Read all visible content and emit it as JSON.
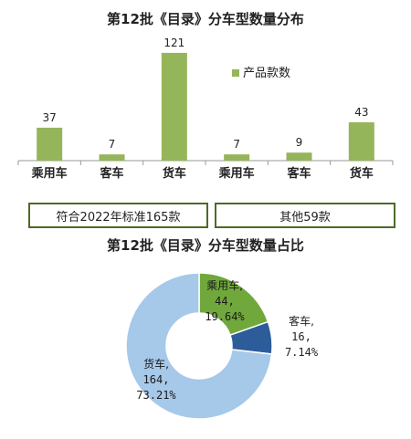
{
  "bar_chart": {
    "title": "第12批《目录》分车型数量分布",
    "legend_label": "产品款数",
    "bar_color": "#95b55a",
    "groups": [
      {
        "label": "符合2022年标准165款"
      },
      {
        "label": "其他59款"
      }
    ]
  },
  "donut_chart": {
    "title": "第12批《目录》分车型数量占比"
  },
  "chart_data": [
    {
      "type": "bar",
      "title": "第12批《目录》分车型数量分布",
      "categories": [
        "乘用车",
        "客车",
        "货车",
        "乘用车",
        "客车",
        "货车"
      ],
      "series": [
        {
          "name": "产品款数",
          "values": [
            37,
            7,
            121,
            7,
            9,
            43
          ]
        }
      ],
      "value_labels": [
        "37",
        "7",
        "121",
        "7",
        "9",
        "43"
      ],
      "groups": [
        "符合2022年标准165款",
        "其他59款"
      ],
      "legend": "right",
      "grid": false,
      "ylim": [
        0,
        125
      ],
      "color": "#95b55a"
    },
    {
      "type": "pie",
      "subtype": "donut",
      "title": "第12批《目录》分车型数量占比",
      "slices": [
        {
          "label": "乘用车",
          "value": 44,
          "percent": "19.64%",
          "color": "#70a83c"
        },
        {
          "label": "客车",
          "value": 16,
          "percent": "7.14%",
          "color": "#2d5c9b"
        },
        {
          "label": "货车",
          "value": 164,
          "percent": "73.21%",
          "color": "#a6c8e9"
        }
      ],
      "slice_labels": [
        {
          "name": "乘用车,",
          "value": "44,",
          "percent": "19.64%"
        },
        {
          "name": "客车,",
          "value": "16,",
          "percent": "7.14%"
        },
        {
          "name": "货车,",
          "value": "164,",
          "percent": "73.21%"
        }
      ]
    }
  ]
}
